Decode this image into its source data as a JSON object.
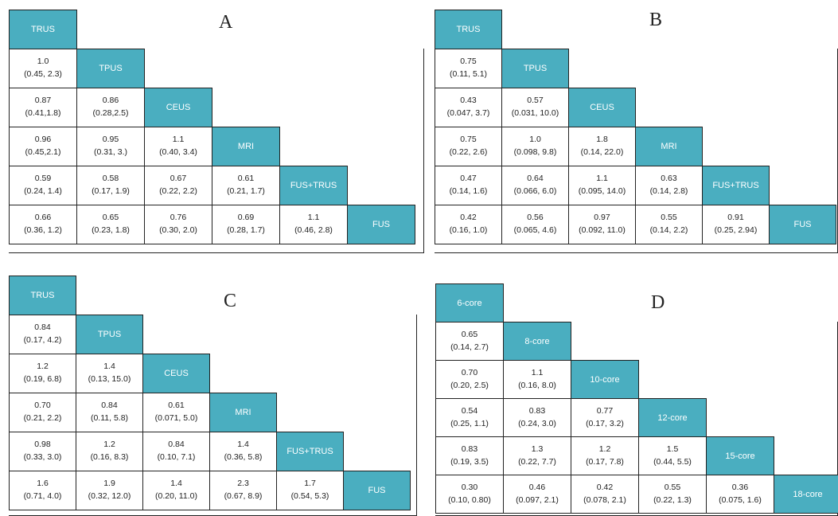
{
  "panels": [
    {
      "letter": "A",
      "headers": [
        "TRUS",
        "TPUS",
        "CEUS",
        "MRI",
        "FUS+TRUS",
        "FUS"
      ],
      "rows": [
        [
          [
            "1.0",
            "(0.45, 2.3)"
          ]
        ],
        [
          [
            "0.87",
            "(0.41,1.8)"
          ],
          [
            "0.86",
            "(0.28,2.5)"
          ]
        ],
        [
          [
            "0.96",
            "(0.45,2.1)"
          ],
          [
            "0.95",
            "(0.31, 3.)"
          ],
          [
            "1.1",
            "(0.40, 3.4)"
          ]
        ],
        [
          [
            "0.59",
            "(0.24, 1.4)"
          ],
          [
            "0.58",
            "(0.17, 1.9)"
          ],
          [
            "0.67",
            "(0.22, 2.2)"
          ],
          [
            "0.61",
            "(0.21, 1.7)"
          ]
        ],
        [
          [
            "0.66",
            "(0.36, 1.2)"
          ],
          [
            "0.65",
            "(0.23, 1.8)"
          ],
          [
            "0.76",
            "(0.30, 2.0)"
          ],
          [
            "0.69",
            "(0.28, 1.7)"
          ],
          [
            "1.1",
            "(0.46, 2.8)"
          ]
        ]
      ]
    },
    {
      "letter": "B",
      "headers": [
        "TRUS",
        "TPUS",
        "CEUS",
        "MRI",
        "FUS+TRUS",
        "FUS"
      ],
      "rows": [
        [
          [
            "0.75",
            "(0.11, 5.1)"
          ]
        ],
        [
          [
            "0.43",
            "(0.047, 3.7)"
          ],
          [
            "0.57",
            "(0.031, 10.0)"
          ]
        ],
        [
          [
            "0.75",
            "(0.22, 2.6)"
          ],
          [
            "1.0",
            "(0.098, 9.8)"
          ],
          [
            "1.8",
            "(0.14, 22.0)"
          ]
        ],
        [
          [
            "0.47",
            "(0.14, 1.6)"
          ],
          [
            "0.64",
            "(0.066, 6.0)"
          ],
          [
            "1.1",
            "(0.095, 14.0)"
          ],
          [
            "0.63",
            "(0.14, 2.8)"
          ]
        ],
        [
          [
            "0.42",
            "(0.16, 1.0)"
          ],
          [
            "0.56",
            "(0.065, 4.6)"
          ],
          [
            "0.97",
            "(0.092, 11.0)"
          ],
          [
            "0.55",
            "(0.14, 2.2)"
          ],
          [
            "0.91",
            "(0.25, 2.94)"
          ]
        ]
      ]
    },
    {
      "letter": "C",
      "headers": [
        "TRUS",
        "TPUS",
        "CEUS",
        "MRI",
        "FUS+TRUS",
        "FUS"
      ],
      "rows": [
        [
          [
            "0.84",
            "(0.17, 4.2)"
          ]
        ],
        [
          [
            "1.2",
            "(0.19, 6.8)"
          ],
          [
            "1.4",
            "(0.13, 15.0)"
          ]
        ],
        [
          [
            "0.70",
            "(0.21, 2.2)"
          ],
          [
            "0.84",
            "(0.11, 5.8)"
          ],
          [
            "0.61",
            "(0.071, 5.0)"
          ]
        ],
        [
          [
            "0.98",
            "(0.33, 3.0)"
          ],
          [
            "1.2",
            "(0.16, 8.3)"
          ],
          [
            "0.84",
            "(0.10, 7.1)"
          ],
          [
            "1.4",
            "(0.36, 5.8)"
          ]
        ],
        [
          [
            "1.6",
            "(0.71, 4.0)"
          ],
          [
            "1.9",
            "(0.32, 12.0)"
          ],
          [
            "1.4",
            "(0.20, 11.0)"
          ],
          [
            "2.3",
            "(0.67, 8.9)"
          ],
          [
            "1.7",
            "(0.54, 5.3)"
          ]
        ]
      ]
    },
    {
      "letter": "D",
      "headers": [
        "6-core",
        "8-core",
        "10-core",
        "12-core",
        "15-core",
        "18-core"
      ],
      "rows": [
        [
          [
            "0.65",
            "(0.14, 2.7)"
          ]
        ],
        [
          [
            "0.70",
            "(0.20, 2.5)"
          ],
          [
            "1.1",
            "(0.16, 8.0)"
          ]
        ],
        [
          [
            "0.54",
            "(0.25, 1.1)"
          ],
          [
            "0.83",
            "(0.24, 3.0)"
          ],
          [
            "0.77",
            "(0.17, 3.2)"
          ]
        ],
        [
          [
            "0.83",
            "(0.19, 3.5)"
          ],
          [
            "1.3",
            "(0.22, 7.7)"
          ],
          [
            "1.2",
            "(0.17, 7.8)"
          ],
          [
            "1.5",
            "(0.44, 5.5)"
          ]
        ],
        [
          [
            "0.30",
            "(0.10, 0.80)"
          ],
          [
            "0.46",
            "(0.097, 2.1)"
          ],
          [
            "0.42",
            "(0.078, 2.1)"
          ],
          [
            "0.55",
            "(0.22, 1.3)"
          ],
          [
            "0.36",
            "(0.075, 1.6)"
          ]
        ]
      ]
    }
  ]
}
